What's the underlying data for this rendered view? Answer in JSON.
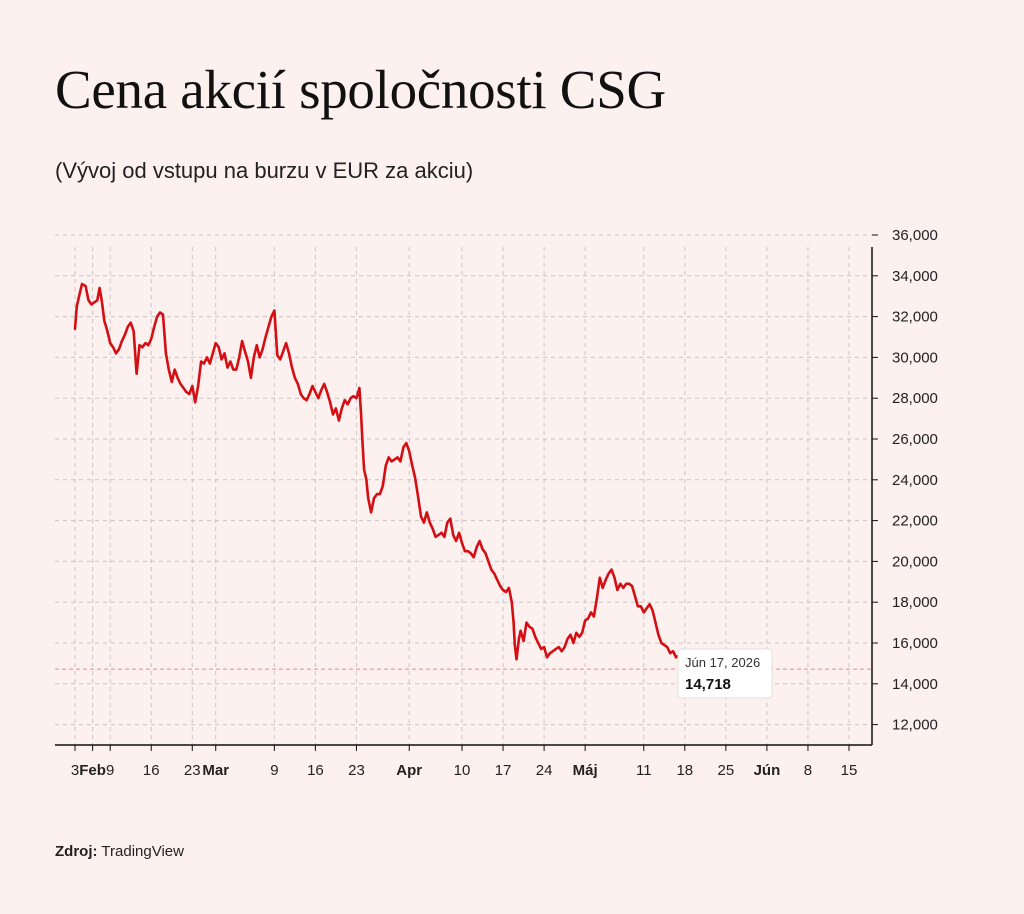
{
  "title": "Cena akcií spoločnosti CSG",
  "subtitle": "(Vývoj od vstupu na burzu v EUR za akciu)",
  "source": {
    "label": "Zdroj:",
    "text": "TradingView"
  },
  "tooltip": {
    "date": "Jún 17, 2026",
    "value": "14,718"
  },
  "colors": {
    "line": "#d40f14",
    "background": "#fdf1f0",
    "grid": "#c9c3c2",
    "reference": "#f08a8a"
  },
  "chart_data": {
    "type": "line",
    "title": "Cena akcií spoločnosti CSG",
    "subtitle": "(Vývoj od vstupu na burzu v EUR za akciu)",
    "xlabel": "",
    "ylabel": "",
    "ylim": [
      11000,
      36000
    ],
    "y_axis_position": "right",
    "grid": true,
    "reference_line": 14718,
    "y_ticks": [
      12000,
      14000,
      16000,
      18000,
      20000,
      22000,
      24000,
      26000,
      28000,
      30000,
      32000,
      34000,
      36000
    ],
    "y_tick_labels": [
      "12,000",
      "14,000",
      "16,000",
      "18,000",
      "20,000",
      "22,000",
      "24,000",
      "26,000",
      "28,000",
      "30,000",
      "32,000",
      "34,000",
      "36,000"
    ],
    "x_ticks": [
      {
        "label": "3",
        "day": 0,
        "bold": false
      },
      {
        "label": "Feb",
        "day": 3,
        "bold": true
      },
      {
        "label": "9",
        "day": 6,
        "bold": false
      },
      {
        "label": "16",
        "day": 13,
        "bold": false
      },
      {
        "label": "23",
        "day": 20,
        "bold": false
      },
      {
        "label": "Mar",
        "day": 24,
        "bold": true
      },
      {
        "label": "9",
        "day": 34,
        "bold": false
      },
      {
        "label": "16",
        "day": 41,
        "bold": false
      },
      {
        "label": "23",
        "day": 48,
        "bold": false
      },
      {
        "label": "Apr",
        "day": 57,
        "bold": true
      },
      {
        "label": "10",
        "day": 66,
        "bold": false
      },
      {
        "label": "17",
        "day": 73,
        "bold": false
      },
      {
        "label": "24",
        "day": 80,
        "bold": false
      },
      {
        "label": "Máj",
        "day": 87,
        "bold": true
      },
      {
        "label": "11",
        "day": 97,
        "bold": false
      },
      {
        "label": "18",
        "day": 104,
        "bold": false
      },
      {
        "label": "25",
        "day": 111,
        "bold": false
      },
      {
        "label": "Jún",
        "day": 118,
        "bold": true
      },
      {
        "label": "8",
        "day": 125,
        "bold": false
      },
      {
        "label": "15",
        "day": 132,
        "bold": false
      }
    ],
    "xlim": [
      0,
      134
    ],
    "series": [
      {
        "values": [
          [
            0,
            31400
          ],
          [
            0.3,
            32500
          ],
          [
            0.7,
            33000
          ],
          [
            1.2,
            33600
          ],
          [
            1.8,
            33500
          ],
          [
            2.3,
            32800
          ],
          [
            2.8,
            32600
          ],
          [
            3.3,
            32700
          ],
          [
            3.8,
            32800
          ],
          [
            4.2,
            33400
          ],
          [
            4.6,
            32700
          ],
          [
            5,
            31800
          ],
          [
            5.5,
            31300
          ],
          [
            6,
            30700
          ],
          [
            6.5,
            30500
          ],
          [
            7,
            30200
          ],
          [
            7.5,
            30400
          ],
          [
            8,
            30800
          ],
          [
            8.5,
            31100
          ],
          [
            9,
            31500
          ],
          [
            9.5,
            31700
          ],
          [
            10,
            31300
          ],
          [
            10.5,
            29200
          ],
          [
            11,
            30600
          ],
          [
            11.5,
            30500
          ],
          [
            12,
            30700
          ],
          [
            12.5,
            30600
          ],
          [
            13,
            30900
          ],
          [
            13.5,
            31500
          ],
          [
            14,
            32000
          ],
          [
            14.5,
            32200
          ],
          [
            15,
            32100
          ],
          [
            15.5,
            30200
          ],
          [
            16,
            29400
          ],
          [
            16.5,
            28800
          ],
          [
            17,
            29400
          ],
          [
            17.5,
            29000
          ],
          [
            18,
            28700
          ],
          [
            18.5,
            28500
          ],
          [
            19,
            28300
          ],
          [
            19.5,
            28200
          ],
          [
            20,
            28600
          ],
          [
            20.5,
            27800
          ],
          [
            21,
            28600
          ],
          [
            21.5,
            29800
          ],
          [
            22,
            29700
          ],
          [
            22.5,
            30000
          ],
          [
            23,
            29700
          ],
          [
            23.5,
            30200
          ],
          [
            24,
            30700
          ],
          [
            24.5,
            30500
          ],
          [
            25,
            29900
          ],
          [
            25.5,
            30200
          ],
          [
            26,
            29500
          ],
          [
            26.5,
            29800
          ],
          [
            27,
            29400
          ],
          [
            27.5,
            29400
          ],
          [
            28,
            30000
          ],
          [
            28.5,
            30800
          ],
          [
            29,
            30300
          ],
          [
            29.5,
            29800
          ],
          [
            30,
            29000
          ],
          [
            30.5,
            30000
          ],
          [
            31,
            30600
          ],
          [
            31.5,
            30000
          ],
          [
            32,
            30400
          ],
          [
            32.5,
            31000
          ],
          [
            33,
            31500
          ],
          [
            33.5,
            32000
          ],
          [
            34,
            32300
          ],
          [
            34.5,
            30100
          ],
          [
            35,
            29900
          ],
          [
            35.5,
            30300
          ],
          [
            36,
            30700
          ],
          [
            36.5,
            30200
          ],
          [
            37,
            29500
          ],
          [
            37.5,
            29000
          ],
          [
            38,
            28700
          ],
          [
            38.5,
            28200
          ],
          [
            39,
            28000
          ],
          [
            39.5,
            27900
          ],
          [
            40,
            28200
          ],
          [
            40.5,
            28600
          ],
          [
            41,
            28300
          ],
          [
            41.5,
            28000
          ],
          [
            42,
            28400
          ],
          [
            42.5,
            28700
          ],
          [
            43,
            28300
          ],
          [
            43.5,
            27800
          ],
          [
            44,
            27200
          ],
          [
            44.5,
            27500
          ],
          [
            45,
            26900
          ],
          [
            45.5,
            27500
          ],
          [
            46,
            27900
          ],
          [
            46.5,
            27700
          ],
          [
            47,
            28000
          ],
          [
            47.5,
            28100
          ],
          [
            48,
            28000
          ],
          [
            48.5,
            28500
          ],
          [
            48.8,
            27200
          ],
          [
            49,
            26000
          ],
          [
            49.3,
            24500
          ],
          [
            49.7,
            24000
          ],
          [
            50,
            23100
          ],
          [
            50.5,
            22400
          ],
          [
            51,
            23100
          ],
          [
            51.5,
            23300
          ],
          [
            52,
            23300
          ],
          [
            52.5,
            23700
          ],
          [
            53,
            24700
          ],
          [
            53.5,
            25100
          ],
          [
            54,
            24900
          ],
          [
            54.5,
            25000
          ],
          [
            55,
            25100
          ],
          [
            55.5,
            24900
          ],
          [
            56,
            25600
          ],
          [
            56.5,
            25800
          ],
          [
            57,
            25400
          ],
          [
            57.5,
            24700
          ],
          [
            58,
            24100
          ],
          [
            58.5,
            23200
          ],
          [
            59,
            22200
          ],
          [
            59.5,
            21900
          ],
          [
            60,
            22400
          ],
          [
            60.5,
            21900
          ],
          [
            61,
            21600
          ],
          [
            61.5,
            21200
          ],
          [
            62,
            21300
          ],
          [
            62.5,
            21400
          ],
          [
            63,
            21200
          ],
          [
            63.5,
            21900
          ],
          [
            64,
            22100
          ],
          [
            64.5,
            21300
          ],
          [
            65,
            21000
          ],
          [
            65.5,
            21400
          ],
          [
            66,
            20900
          ],
          [
            66.5,
            20500
          ],
          [
            67,
            20500
          ],
          [
            67.5,
            20400
          ],
          [
            68,
            20200
          ],
          [
            68.5,
            20700
          ],
          [
            69,
            21000
          ],
          [
            69.5,
            20600
          ],
          [
            70,
            20400
          ],
          [
            70.5,
            20000
          ],
          [
            71,
            19600
          ],
          [
            71.5,
            19400
          ],
          [
            72,
            19100
          ],
          [
            72.5,
            18800
          ],
          [
            73,
            18600
          ],
          [
            73.5,
            18500
          ],
          [
            74,
            18700
          ],
          [
            74.5,
            18000
          ],
          [
            74.8,
            17000
          ],
          [
            75,
            15900
          ],
          [
            75.3,
            15200
          ],
          [
            75.7,
            16200
          ],
          [
            76,
            16600
          ],
          [
            76.5,
            16100
          ],
          [
            77,
            17000
          ],
          [
            77.5,
            16800
          ],
          [
            78,
            16700
          ],
          [
            78.5,
            16300
          ],
          [
            79,
            16000
          ],
          [
            79.5,
            15700
          ],
          [
            80,
            15800
          ],
          [
            80.5,
            15300
          ],
          [
            81,
            15500
          ],
          [
            81.5,
            15600
          ],
          [
            82,
            15700
          ],
          [
            82.5,
            15800
          ],
          [
            83,
            15600
          ],
          [
            83.5,
            15800
          ],
          [
            84,
            16200
          ],
          [
            84.5,
            16400
          ],
          [
            85,
            16000
          ],
          [
            85.5,
            16500
          ],
          [
            86,
            16300
          ],
          [
            86.5,
            16500
          ],
          [
            87,
            17100
          ],
          [
            87.5,
            17200
          ],
          [
            88,
            17500
          ],
          [
            88.5,
            17300
          ],
          [
            89,
            18200
          ],
          [
            89.5,
            19200
          ],
          [
            90,
            18700
          ],
          [
            90.5,
            19100
          ],
          [
            91,
            19400
          ],
          [
            91.5,
            19600
          ],
          [
            92,
            19200
          ],
          [
            92.5,
            18600
          ],
          [
            93,
            18900
          ],
          [
            93.5,
            18700
          ],
          [
            94,
            18900
          ],
          [
            94.5,
            18900
          ],
          [
            95,
            18800
          ],
          [
            95.5,
            18300
          ],
          [
            96,
            17800
          ],
          [
            96.5,
            17800
          ],
          [
            97,
            17500
          ],
          [
            97.5,
            17700
          ],
          [
            98,
            17900
          ],
          [
            98.5,
            17600
          ],
          [
            99,
            17000
          ],
          [
            99.5,
            16400
          ],
          [
            100,
            16000
          ],
          [
            100.5,
            15900
          ],
          [
            101,
            15800
          ],
          [
            101.5,
            15500
          ],
          [
            102,
            15600
          ],
          [
            102.5,
            15300
          ],
          [
            103,
            15400
          ],
          [
            103.5,
            15200
          ],
          [
            104,
            15100
          ],
          [
            104.5,
            15000
          ],
          [
            105,
            14700
          ],
          [
            105.5,
            14900
          ],
          [
            106,
            14500
          ],
          [
            106.5,
            14400
          ],
          [
            107,
            14300
          ],
          [
            107.5,
            14400
          ],
          [
            108,
            14200
          ],
          [
            108.5,
            14300
          ],
          [
            109,
            14300
          ],
          [
            109.5,
            14200
          ],
          [
            110,
            14300
          ],
          [
            110.5,
            14100
          ],
          [
            111,
            14000
          ],
          [
            111.5,
            13900
          ],
          [
            112,
            14200
          ],
          [
            112.5,
            14300
          ],
          [
            113,
            14718
          ]
        ]
      }
    ]
  }
}
